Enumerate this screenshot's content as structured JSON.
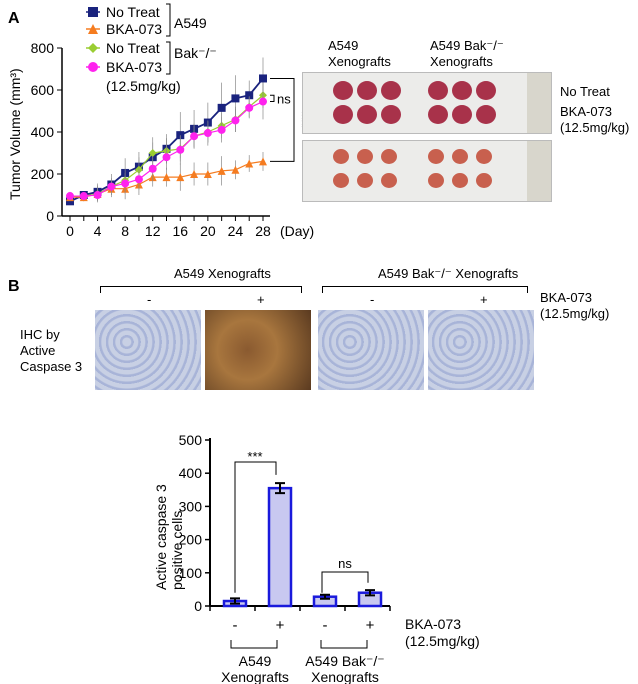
{
  "panel_a": {
    "label": "A",
    "photo_cols": [
      "A549\nXenografts",
      "A549 Bak⁻/⁻\nXenografts"
    ],
    "photo_rows": [
      "No Treat",
      "BKA-073\n(12.5mg/kg)"
    ]
  },
  "panel_b": {
    "label": "B",
    "groups": [
      "A549 Xenografts",
      "A549 Bak⁻/⁻ Xenografts"
    ],
    "signs": [
      "-",
      "+",
      "-",
      "+"
    ],
    "treatment": "BKA-073\n(12.5mg/kg)",
    "row_label": "IHC by\nActive\nCaspase 3"
  },
  "chart_data": [
    {
      "type": "line",
      "xlabel": "(Day)",
      "ylabel": "Tumor Volume (mm³)",
      "xlim": [
        0,
        28
      ],
      "ylim": [
        0,
        800
      ],
      "xticks": [
        0,
        4,
        8,
        12,
        16,
        20,
        24,
        28
      ],
      "yticks": [
        0,
        200,
        400,
        600,
        800
      ],
      "x": [
        0,
        2,
        4,
        6,
        8,
        10,
        12,
        14,
        16,
        18,
        20,
        22,
        24,
        26,
        28
      ],
      "legend_groups": [
        "A549",
        "Bak⁻/⁻"
      ],
      "legend_note": "(12.5mg/kg)",
      "series": [
        {
          "name": "No Treat",
          "group": "A549",
          "color": "#1a237e",
          "marker": "square",
          "values": [
            70,
            100,
            115,
            150,
            205,
            235,
            280,
            320,
            385,
            415,
            445,
            515,
            560,
            575,
            655
          ],
          "err": [
            10,
            15,
            40,
            50,
            70,
            70,
            70,
            70,
            110,
            90,
            95,
            120,
            110,
            70,
            100
          ]
        },
        {
          "name": "BKA-073",
          "group": "A549",
          "color": "#f57c20",
          "marker": "triangle",
          "values": [
            90,
            90,
            105,
            130,
            130,
            150,
            185,
            185,
            185,
            200,
            200,
            215,
            220,
            250,
            260
          ],
          "err": [
            15,
            20,
            40,
            40,
            50,
            50,
            45,
            45,
            65,
            55,
            55,
            70,
            45,
            40,
            45
          ]
        },
        {
          "name": "No Treat",
          "group": "Bak⁻/⁻",
          "color": "#9acd32",
          "marker": "diamond",
          "values": [
            95,
            95,
            105,
            140,
            170,
            220,
            300,
            310,
            320,
            380,
            400,
            430,
            460,
            520,
            575
          ],
          "err": [
            15,
            15,
            30,
            40,
            55,
            60,
            75,
            60,
            60,
            50,
            50,
            60,
            60,
            50,
            60
          ]
        },
        {
          "name": "BKA-073",
          "group": "Bak⁻/⁻",
          "color": "#ff22ee",
          "marker": "circle",
          "values": [
            95,
            95,
            100,
            140,
            155,
            175,
            225,
            280,
            315,
            380,
            395,
            410,
            455,
            515,
            545
          ],
          "err": [
            20,
            15,
            30,
            40,
            50,
            50,
            60,
            60,
            70,
            60,
            60,
            60,
            55,
            50,
            85
          ]
        }
      ],
      "annotations": [
        "ns",
        "***"
      ]
    },
    {
      "type": "bar",
      "ylabel": "Active caspase 3\npositive cells",
      "ylim": [
        0,
        500
      ],
      "yticks": [
        0,
        100,
        200,
        300,
        400,
        500
      ],
      "categories": [
        "-",
        "+",
        "-",
        "+"
      ],
      "values": [
        15,
        355,
        28,
        40
      ],
      "err": [
        8,
        15,
        6,
        8
      ],
      "color": "#1a1adc",
      "fill": "#c8c8f0",
      "annotations": [
        "***",
        "ns"
      ]
    }
  ]
}
